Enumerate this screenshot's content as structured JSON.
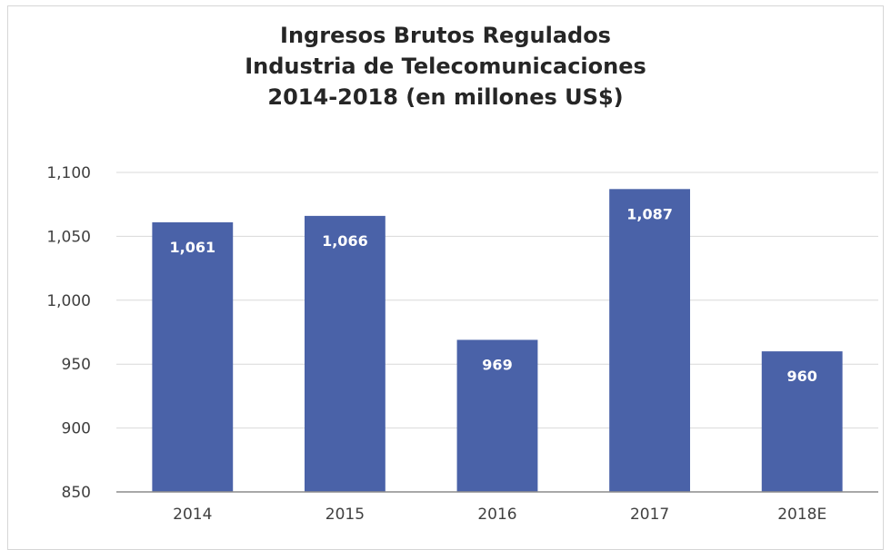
{
  "chart_data": {
    "type": "bar",
    "title_lines": [
      "Ingresos Brutos Regulados",
      "Industria de Telecomunicaciones",
      "2014-2018 (en millones US$)"
    ],
    "categories": [
      "2014",
      "2015",
      "2016",
      "2017",
      "2018E"
    ],
    "values": [
      1061,
      1066,
      969,
      1087,
      960
    ],
    "value_labels": [
      "1,061",
      "1,066",
      "969",
      "1,087",
      "960"
    ],
    "ylim": [
      850,
      1100
    ],
    "yticks": [
      850,
      900,
      950,
      1000,
      1050,
      1100
    ],
    "ytick_labels": [
      "850",
      "900",
      "950",
      "1,000",
      "1,050",
      "1,100"
    ],
    "grid": true,
    "bar_color": "#4a62a8",
    "gridline_color": "#d9d9d9",
    "axis_color": "#8c8c8c"
  }
}
